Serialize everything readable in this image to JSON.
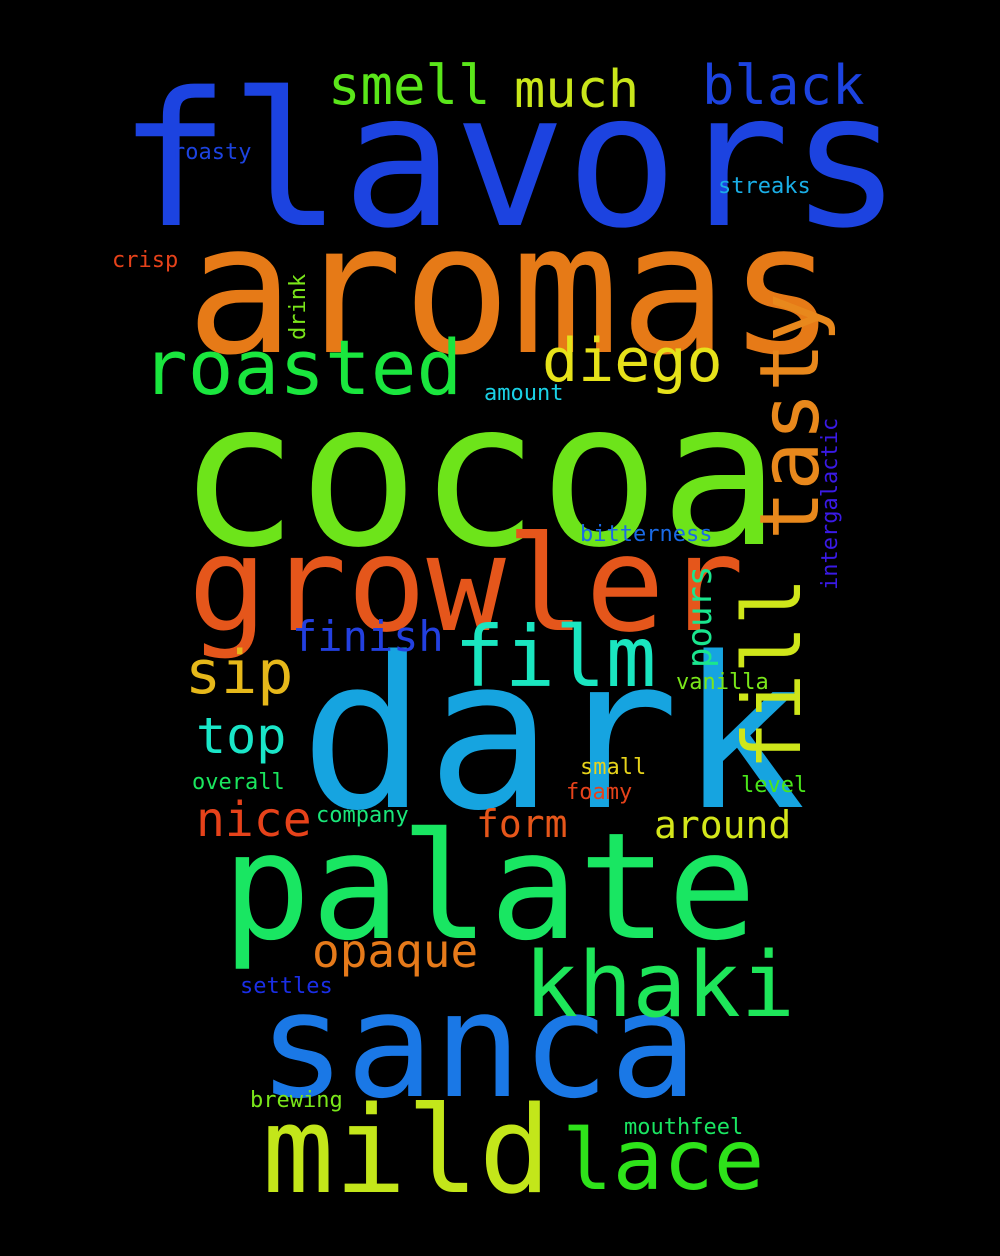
{
  "words": {
    "flavors": {
      "text": "flavors",
      "color": "#1c43e0"
    },
    "aromas": {
      "text": "aromas",
      "color": "#e67a17"
    },
    "cocoa": {
      "text": "cocoa",
      "color": "#6de41a"
    },
    "growler": {
      "text": "growler",
      "color": "#e5561b"
    },
    "dark": {
      "text": "dark",
      "color": "#16a4e0"
    },
    "palate": {
      "text": "palate",
      "color": "#19e662"
    },
    "sanca": {
      "text": "sanca",
      "color": "#1a78e6"
    },
    "mild": {
      "text": "mild",
      "color": "#c3e61a"
    },
    "lace": {
      "text": "lace",
      "color": "#2ee31a"
    },
    "khaki": {
      "text": "khaki",
      "color": "#1ee65a"
    },
    "film": {
      "text": "film",
      "color": "#1ae6c0"
    },
    "fill": {
      "text": "fill",
      "color": "#cfe61a"
    },
    "tasty": {
      "text": "tasty",
      "color": "#e8881c"
    },
    "roasted": {
      "text": "roasted",
      "color": "#1ae63e"
    },
    "diego": {
      "text": "diego",
      "color": "#e6e21a"
    },
    "smell": {
      "text": "smell",
      "color": "#5ae61a"
    },
    "much": {
      "text": "much",
      "color": "#c9e61a"
    },
    "black": {
      "text": "black",
      "color": "#1c43e0"
    },
    "sip": {
      "text": "sip",
      "color": "#e6b81a"
    },
    "finish": {
      "text": "finish",
      "color": "#2340e0"
    },
    "top": {
      "text": "top",
      "color": "#1ae6c8"
    },
    "nice": {
      "text": "nice",
      "color": "#e6421a"
    },
    "form": {
      "text": "form",
      "color": "#e6561a"
    },
    "around": {
      "text": "around",
      "color": "#d4e61a"
    },
    "opaque": {
      "text": "opaque",
      "color": "#e67a1a"
    },
    "pours": {
      "text": "pours",
      "color": "#1ae68e"
    },
    "roasty": {
      "text": "roasty",
      "color": "#1c43e0"
    },
    "streaks": {
      "text": "streaks",
      "color": "#1aaee6"
    },
    "crisp": {
      "text": "crisp",
      "color": "#e6421a"
    },
    "drink": {
      "text": "drink",
      "color": "#7ae61a"
    },
    "amount": {
      "text": "amount",
      "color": "#1ad2e6"
    },
    "intergalactic": {
      "text": "intergalactic",
      "color": "#3a1ae6"
    },
    "bitterness": {
      "text": "bitterness",
      "color": "#1a6ae6"
    },
    "vanilla": {
      "text": "vanilla",
      "color": "#7ae61a"
    },
    "small": {
      "text": "small",
      "color": "#e6d21a"
    },
    "overall": {
      "text": "overall",
      "color": "#1ae65e"
    },
    "level": {
      "text": "level",
      "color": "#4ae61a"
    },
    "foamy": {
      "text": "foamy",
      "color": "#e6421a"
    },
    "company": {
      "text": "company",
      "color": "#1ae67a"
    },
    "settles": {
      "text": "settles",
      "color": "#1a2ee6"
    },
    "brewing": {
      "text": "brewing",
      "color": "#7ae61a"
    },
    "mouthfeel": {
      "text": "mouthfeel",
      "color": "#1ae662"
    }
  }
}
